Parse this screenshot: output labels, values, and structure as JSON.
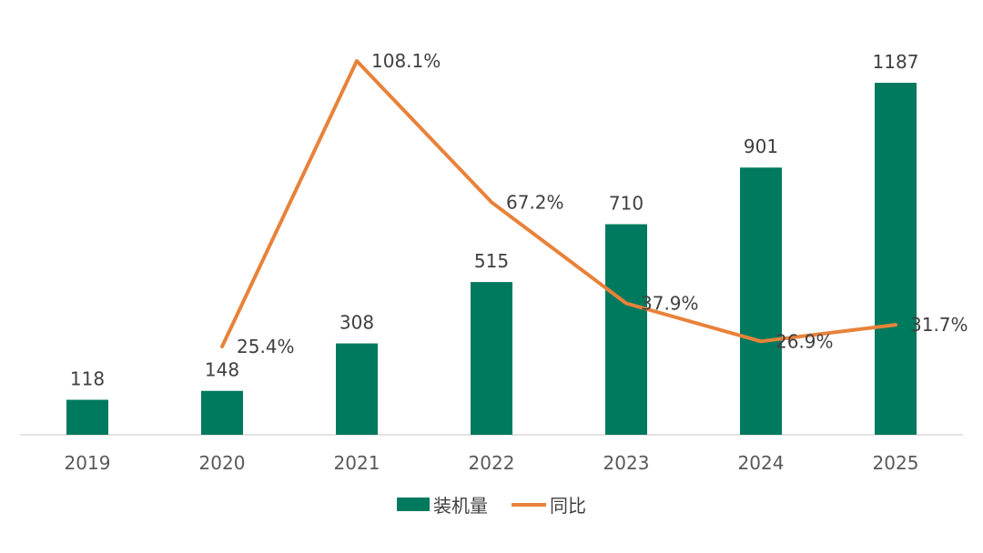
{
  "chart_data": {
    "type": "bar+line",
    "categories": [
      "2019",
      "2020",
      "2021",
      "2022",
      "2023",
      "2024",
      "2025"
    ],
    "series": [
      {
        "name": "装机量",
        "type": "bar",
        "values": [
          118,
          148,
          308,
          515,
          710,
          901,
          1187
        ],
        "labels": [
          "118",
          "148",
          "308",
          "515",
          "710",
          "901",
          "1187"
        ],
        "color": "#007A5E"
      },
      {
        "name": "同比",
        "type": "line",
        "values": [
          null,
          25.4,
          108.1,
          67.2,
          37.9,
          26.9,
          31.7
        ],
        "labels": [
          "",
          "25.4%",
          "108.1%",
          "67.2%",
          "37.9%",
          "26.9%",
          "31.7%"
        ],
        "color": "#E8823A"
      }
    ],
    "bar_axis_range": [
      0,
      1300
    ],
    "line_axis_range": [
      0,
      120
    ],
    "gridlines": false,
    "legend_position": "bottom"
  }
}
